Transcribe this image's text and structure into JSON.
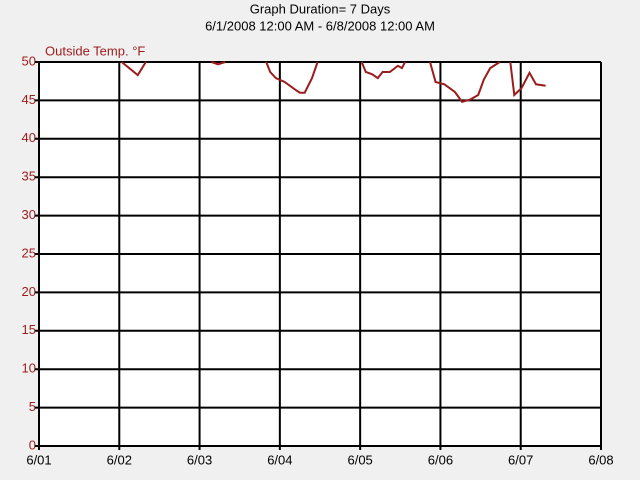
{
  "chart_data": {
    "type": "line",
    "title": "Graph Duration= 7 Days",
    "subtitle": "6/1/2008 12:00 AM - 6/8/2008 12:00 AM",
    "y_label": "Outside Temp. °F",
    "x": [
      1.03,
      1.23,
      1.33,
      null,
      2.15,
      2.23,
      2.32,
      null,
      2.83,
      2.88,
      2.95,
      3.06,
      3.19,
      3.25,
      3.31,
      3.4,
      3.47,
      null,
      4.02,
      4.07,
      4.15,
      4.22,
      4.28,
      4.37,
      4.47,
      4.52,
      4.56,
      null,
      4.87,
      4.94,
      5.05,
      5.18,
      5.27,
      5.37,
      5.47,
      5.54,
      5.62,
      5.74,
      null,
      5.87,
      5.92,
      6.01,
      6.11,
      6.19,
      6.31
    ],
    "series": [
      {
        "name": "Outside Temp. °F",
        "color": "#9b1c1c",
        "values": [
          50,
          48.3,
          50,
          null,
          50,
          49.7,
          50,
          null,
          50,
          48.7,
          47.9,
          47.4,
          46.4,
          46,
          46,
          47.9,
          50,
          null,
          50,
          48.7,
          48.4,
          47.9,
          48.7,
          48.7,
          49.5,
          49.2,
          50,
          null,
          50,
          47.4,
          47.1,
          46.1,
          44.8,
          45.1,
          45.7,
          47.7,
          49.2,
          50,
          null,
          50,
          45.7,
          46.6,
          48.6,
          47.1,
          46.9
        ]
      }
    ],
    "xlim": [
      0,
      7
    ],
    "xticks": [
      {
        "value": 0,
        "label": "6/01"
      },
      {
        "value": 1,
        "label": "6/02"
      },
      {
        "value": 2,
        "label": "6/03"
      },
      {
        "value": 3,
        "label": "6/04"
      },
      {
        "value": 4,
        "label": "6/05"
      },
      {
        "value": 5,
        "label": "6/06"
      },
      {
        "value": 6,
        "label": "6/07"
      },
      {
        "value": 7,
        "label": "6/08"
      }
    ],
    "ylim": [
      0,
      50
    ],
    "yticks": [
      0,
      5,
      10,
      15,
      20,
      25,
      30,
      35,
      40,
      45,
      50
    ],
    "grid": true
  }
}
